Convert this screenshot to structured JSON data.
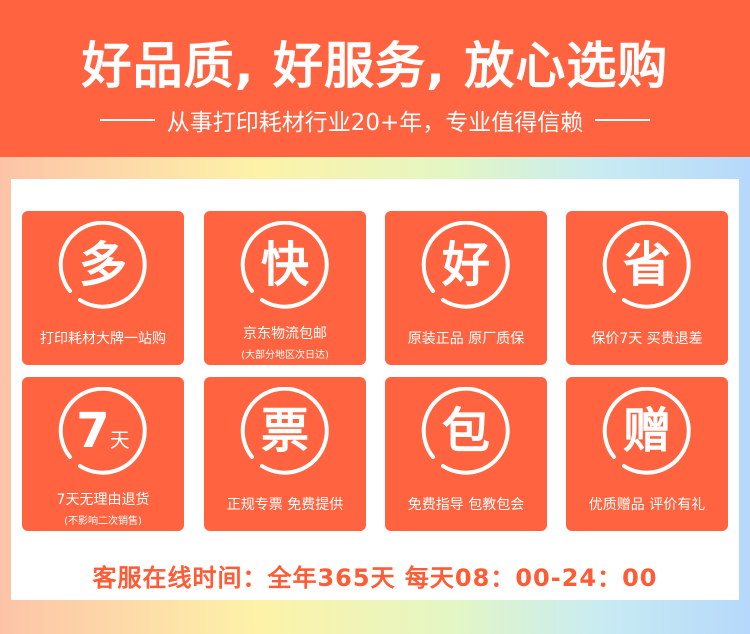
{
  "header": {
    "title": "好品质, 好服务, 放心选购",
    "subtitle": "从事打印耗材行业20+年，专业值得信赖"
  },
  "cards": [
    {
      "glyph": "多",
      "label": "打印耗材大牌一站购"
    },
    {
      "glyph": "快",
      "label": "京东物流包邮",
      "sub": "(大部分地区次日达)"
    },
    {
      "glyph": "好",
      "label": "原装正品 原厂质保"
    },
    {
      "glyph": "省",
      "label": "保价7天 买贵退差"
    },
    {
      "glyph": "7",
      "glyph_small": "天",
      "label": "7天无理由退货",
      "sub": "(不影响二次销售)"
    },
    {
      "glyph": "票",
      "label": "正规专票 免费提供"
    },
    {
      "glyph": "包",
      "label": "免费指导 包教包会"
    },
    {
      "glyph": "赠",
      "label": "优质赠品 评价有礼"
    }
  ],
  "footer": {
    "text": "客服在线时间：全年365天 每天08：00-24：00"
  },
  "colors": {
    "brand": "#ff633f",
    "text_accent": "#ff5b35"
  }
}
